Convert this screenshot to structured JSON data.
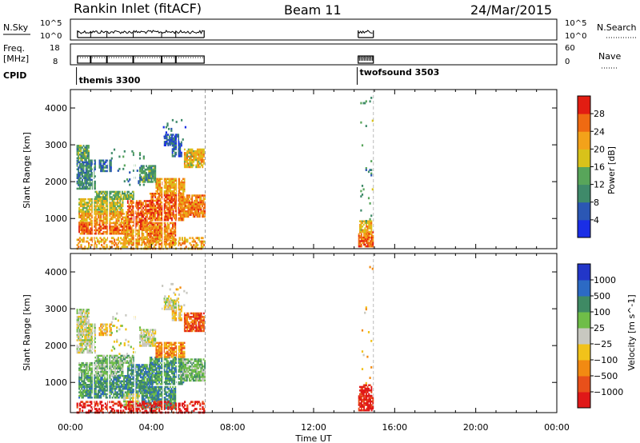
{
  "header": {
    "station": "Rankin Inlet (fitACF)",
    "beam": "Beam 11",
    "date": "24/Mar/2015"
  },
  "chart_data": {
    "type": "heatmap",
    "time_axis": {
      "label": "Time UT",
      "ticks": [
        "00:00",
        "04:00",
        "08:00",
        "12:00",
        "16:00",
        "20:00",
        "00:00"
      ],
      "range_hours": [
        0,
        24
      ]
    },
    "strips": {
      "nsky": {
        "label": "N.Sky",
        "left_ticks": [
          "10^5",
          "10^0"
        ],
        "right_ticks": [
          "10^5",
          "10^0"
        ],
        "right_label": "N.Search"
      },
      "freq": {
        "label_line1": "Freq.",
        "label_line2": "[MHz]",
        "left_ticks": [
          "18",
          "8"
        ],
        "right_ticks": [
          "60",
          "0"
        ],
        "right_label": "Nave"
      },
      "cpid": {
        "label": "CPID",
        "programs": [
          {
            "name": "themis 3300",
            "start_hour": 0.3
          },
          {
            "name": "twofsound 3503",
            "start_hour": 14.15
          }
        ]
      }
    },
    "slant_range_axis": {
      "label": "Slant Range [km]",
      "ticks": [
        "1000",
        "2000",
        "3000",
        "4000"
      ],
      "range_km": [
        180,
        4500
      ]
    },
    "power_panel": {
      "colorbar_label": "Power [dB]",
      "colorbar_ticks": [
        "4",
        "8",
        "12",
        "16",
        "20",
        "24",
        "28"
      ],
      "value_range": [
        0,
        32
      ]
    },
    "velocity_panel": {
      "colorbar_label": "Velocity [m s^-1]",
      "colorbar_ticks": [
        "1000",
        "500",
        "100",
        "25",
        "−25",
        "−100",
        "−500",
        "−1000"
      ]
    },
    "data_gaps": [
      {
        "from_hour": 6.65,
        "to_hour": 14.15
      },
      {
        "from_hour": 14.95,
        "to_hour": 24.0
      }
    ],
    "scatter_blocks": [
      {
        "t": [
          0.4,
          2.8
        ],
        "r": [
          600,
          900
        ],
        "p": 26,
        "v": 0
      },
      {
        "t": [
          0.4,
          2.8
        ],
        "r": [
          900,
          1200
        ],
        "p": 22,
        "v": 0
      },
      {
        "t": [
          0.4,
          2.6
        ],
        "r": [
          1200,
          1550
        ],
        "p": 18,
        "v": 1
      },
      {
        "t": [
          1.2,
          3.1
        ],
        "r": [
          1550,
          1750
        ],
        "p": 14,
        "v": 1
      },
      {
        "t": [
          0.3,
          1.2
        ],
        "r": [
          1800,
          2600
        ],
        "p": 10,
        "v": 2
      },
      {
        "t": [
          0.3,
          0.9
        ],
        "r": [
          2600,
          3000
        ],
        "p": 12,
        "v": 2
      },
      {
        "t": [
          1.4,
          2.0
        ],
        "r": [
          2300,
          2600
        ],
        "p": 8,
        "v": 3
      },
      {
        "t": [
          2.8,
          4.0
        ],
        "r": [
          700,
          1500
        ],
        "p": 27,
        "v": 0
      },
      {
        "t": [
          2.6,
          3.4
        ],
        "r": [
          300,
          700
        ],
        "p": 22,
        "v": 2
      },
      {
        "t": [
          3.5,
          5.2
        ],
        "r": [
          300,
          900
        ],
        "p": 24,
        "v": 0
      },
      {
        "t": [
          3.9,
          5.6
        ],
        "r": [
          950,
          1700
        ],
        "p": 26,
        "v": 0
      },
      {
        "t": [
          4.2,
          5.6
        ],
        "r": [
          1700,
          2100
        ],
        "p": 22,
        "v": 4
      },
      {
        "t": [
          3.4,
          4.2
        ],
        "r": [
          2000,
          2450
        ],
        "p": 12,
        "v": 2
      },
      {
        "t": [
          5.4,
          6.6
        ],
        "r": [
          1050,
          1650
        ],
        "p": 24,
        "v": 1
      },
      {
        "t": [
          5.6,
          6.6
        ],
        "r": [
          2400,
          2900
        ],
        "p": 20,
        "v": 5
      },
      {
        "t": [
          5.0,
          5.5
        ],
        "r": [
          2700,
          3100
        ],
        "p": 6,
        "v": 3
      },
      {
        "t": [
          4.6,
          5.3
        ],
        "r": [
          3000,
          3300
        ],
        "p": 6,
        "v": 2
      },
      {
        "t": [
          14.2,
          14.9
        ],
        "r": [
          250,
          650
        ],
        "p": 26,
        "v": 6
      },
      {
        "t": [
          14.25,
          14.85
        ],
        "r": [
          650,
          950
        ],
        "p": 20,
        "v": 6
      }
    ],
    "scatter_sparse": [
      {
        "t": [
          0.3,
          6.6
        ],
        "r": [
          200,
          500
        ],
        "d": 0.4,
        "p": 22,
        "v": 6
      },
      {
        "t": [
          2.0,
          3.6
        ],
        "r": [
          1800,
          2900
        ],
        "d": 0.06,
        "p": 10,
        "v": 2
      },
      {
        "t": [
          4.5,
          5.8
        ],
        "r": [
          3000,
          3700
        ],
        "d": 0.05,
        "p": 6,
        "v": 3
      },
      {
        "t": [
          14.3,
          14.9
        ],
        "r": [
          900,
          4400
        ],
        "d": 0.025,
        "p": 12,
        "v": 3
      }
    ]
  }
}
